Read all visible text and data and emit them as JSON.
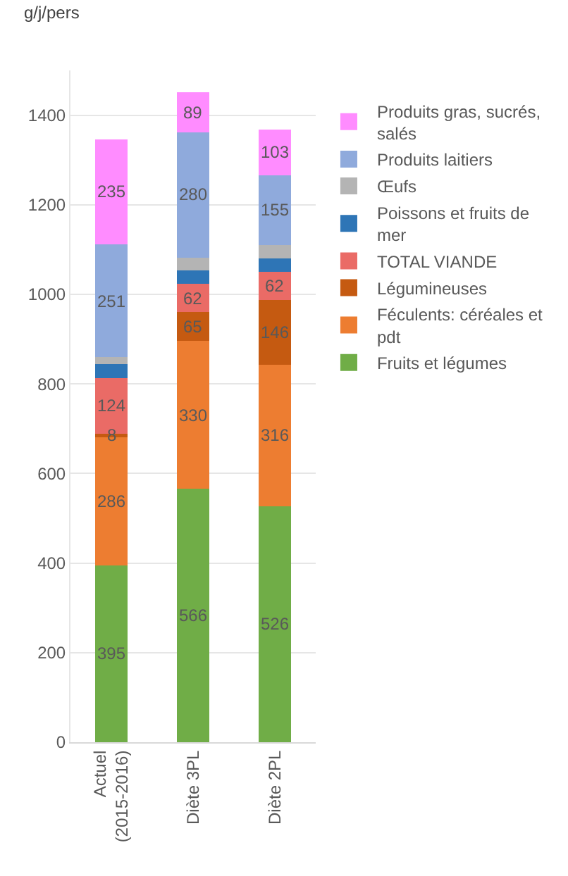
{
  "chart_data": {
    "type": "bar",
    "stacked": true,
    "ylabel": "g/j/pers",
    "categories": [
      "Actuel (2015-2016)",
      "Diète 3PL",
      "Diète 2PL"
    ],
    "ylim": [
      0,
      1500
    ],
    "yticks": [
      0,
      200,
      400,
      600,
      800,
      1000,
      1200,
      1400
    ],
    "grid": "y",
    "legend": "right",
    "series": [
      {
        "name": "Fruits et légumes",
        "color": "#70ad47",
        "values": [
          395,
          566,
          526
        ],
        "value_labels": [
          "395",
          "566",
          "526"
        ]
      },
      {
        "name": "Féculents: céréales et pdt",
        "color": "#ed7d31",
        "values": [
          286,
          330,
          316
        ],
        "value_labels": [
          "286",
          "330",
          "316"
        ]
      },
      {
        "name": "Légumineuses",
        "color": "#c55a11",
        "values": [
          8,
          65,
          146
        ],
        "value_labels": [
          "8",
          "65",
          "146"
        ]
      },
      {
        "name": "TOTAL VIANDE",
        "color": "#ea6b66",
        "values": [
          124,
          62,
          62
        ],
        "value_labels": [
          "124",
          "62",
          "62"
        ]
      },
      {
        "name": "Poissons et fruits de mer",
        "color": "#2e75b6",
        "values": [
          32,
          30,
          30
        ],
        "value_labels": [
          null,
          null,
          null
        ]
      },
      {
        "name": "Œufs",
        "color": "#b4b4b4",
        "values": [
          15,
          29,
          30
        ],
        "value_labels": [
          null,
          null,
          null
        ]
      },
      {
        "name": "Produits laitiers",
        "color": "#8faadc",
        "values": [
          251,
          280,
          155
        ],
        "value_labels": [
          "251",
          "280",
          "155"
        ]
      },
      {
        "name": "Produits gras, sucrés, salés",
        "color": "#ff8cff",
        "values": [
          235,
          89,
          103
        ],
        "value_labels": [
          "235",
          "89",
          "103"
        ]
      }
    ]
  }
}
